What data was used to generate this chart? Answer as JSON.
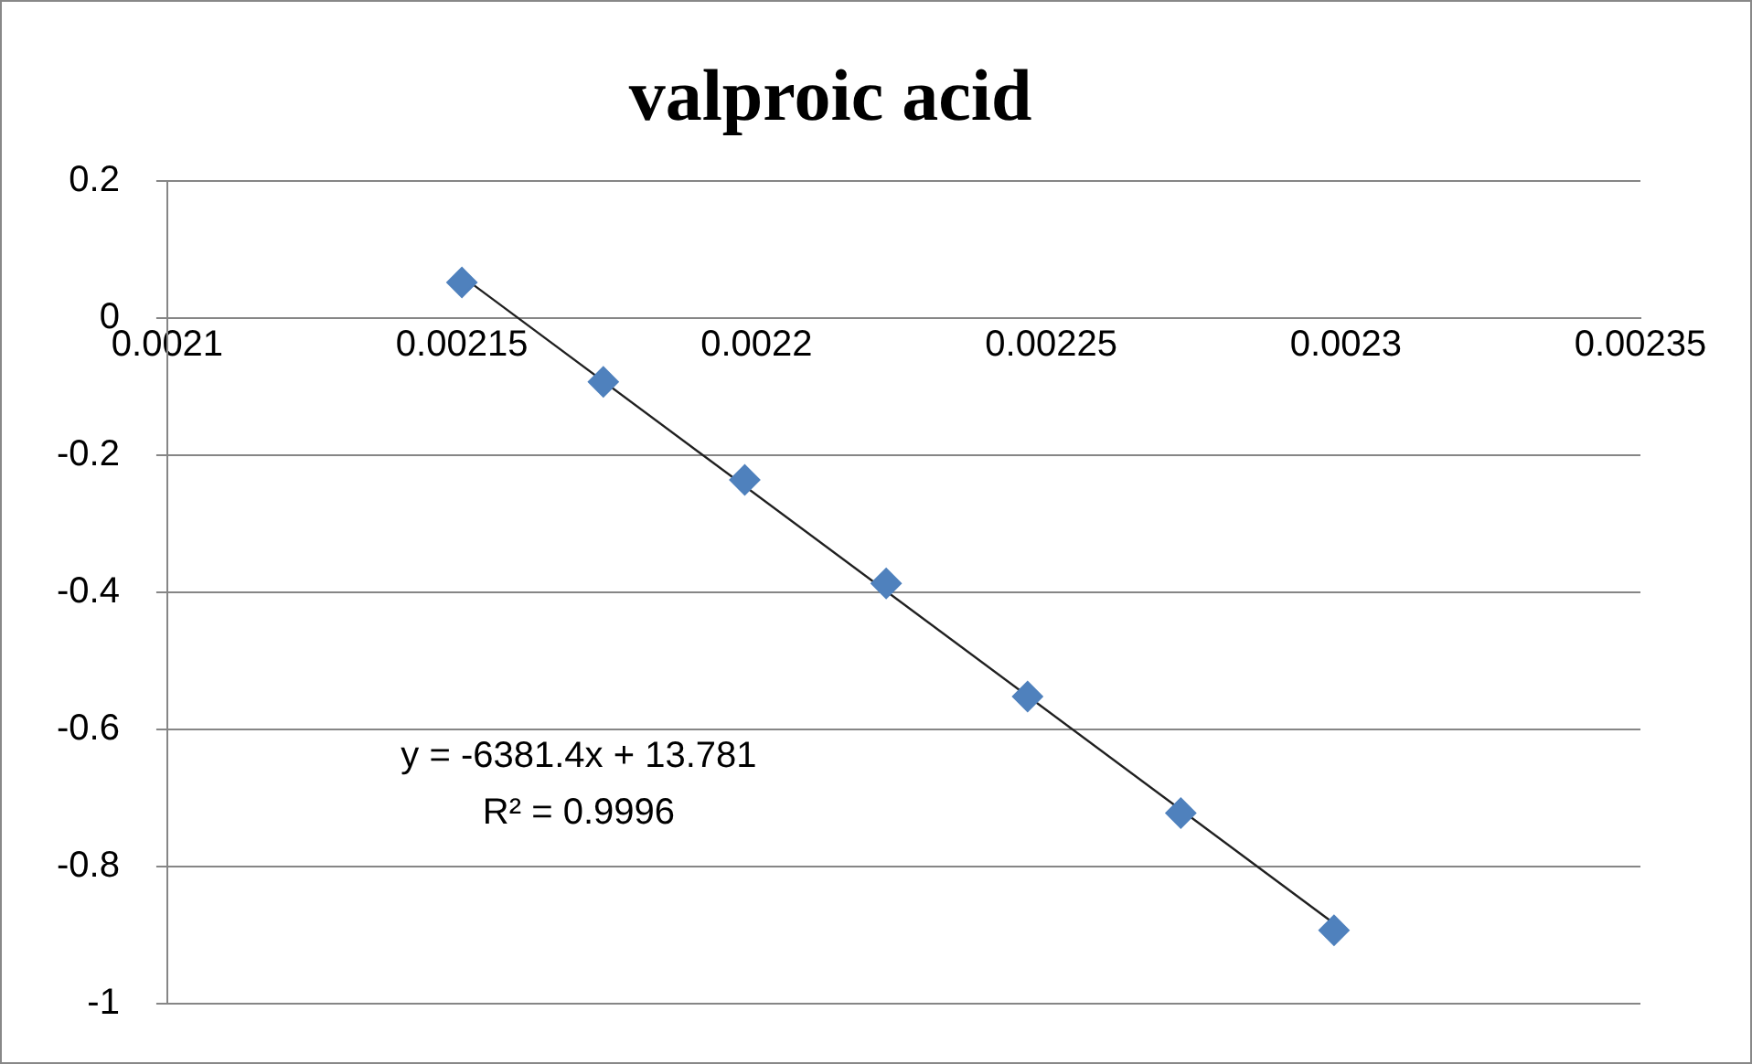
{
  "chart_data": {
    "type": "scatter",
    "title": "valproic acid",
    "x": [
      0.00215,
      0.002174,
      0.002198,
      0.002222,
      0.002246,
      0.002272,
      0.002298
    ],
    "series": [
      {
        "type": "scatter",
        "color": "#4f81bd",
        "marker": "diamond",
        "values": [
          0.052,
          -0.093,
          -0.236,
          -0.387,
          -0.552,
          -0.722,
          -0.893
        ]
      },
      {
        "type": "line",
        "color": "#202020",
        "marker": "none",
        "x": [
          0.00215,
          0.002298
        ],
        "values": [
          0.061,
          -0.883
        ]
      }
    ],
    "xlim": [
      0.0021,
      0.00235
    ],
    "xticks": [
      0.0021,
      0.00215,
      0.0022,
      0.00225,
      0.0023,
      0.00235
    ],
    "ylim": [
      -1,
      0.2
    ],
    "yticks": [
      0.2,
      0,
      -0.2,
      -0.4,
      -0.6,
      -0.8,
      -1
    ],
    "grid": "y",
    "legend": false,
    "annotations": [
      "y = -6381.4x + 13.781",
      "R² = 0.9996"
    ]
  }
}
